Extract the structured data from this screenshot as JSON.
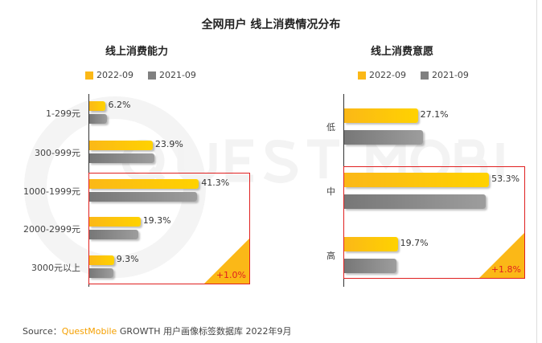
{
  "title": "全网用户 线上消费情况分布",
  "legend": {
    "series_a": "2022-09",
    "series_b": "2021-09"
  },
  "colors": {
    "series_a": "#fbb817",
    "series_b": "#8a8a8a",
    "highlight": "#e02020"
  },
  "watermark": "QUEST MOBILE",
  "source": {
    "label": "Source：",
    "brand": "QuestMobile",
    "text": "GROWTH 用户画像标签数据库 2022年9月"
  },
  "chart_data": [
    {
      "type": "bar",
      "orientation": "horizontal",
      "title": "线上消费能力",
      "categories": [
        "1-299元",
        "300-999元",
        "1000-1999元",
        "2000-2999元",
        "3000元以上"
      ],
      "series": [
        {
          "name": "2022-09",
          "values": [
            6.2,
            23.9,
            41.3,
            19.3,
            9.3
          ],
          "labels": [
            "6.2%",
            "23.9%",
            "41.3%",
            "19.3%",
            "9.3%"
          ]
        },
        {
          "name": "2021-09",
          "values": [
            6.7,
            24.5,
            40.6,
            18.6,
            9.0
          ]
        }
      ],
      "annotation": "+1.0%",
      "xlim": [
        0,
        45
      ]
    },
    {
      "type": "bar",
      "orientation": "horizontal",
      "title": "线上消费意愿",
      "categories": [
        "低",
        "中",
        "高"
      ],
      "series": [
        {
          "name": "2022-09",
          "values": [
            27.1,
            53.3,
            19.7
          ],
          "labels": [
            "27.1%",
            "53.3%",
            "19.7%"
          ]
        },
        {
          "name": "2021-09",
          "values": [
            29.0,
            52.1,
            19.1
          ]
        }
      ],
      "annotation": "+1.8%",
      "xlim": [
        0,
        60
      ]
    }
  ]
}
